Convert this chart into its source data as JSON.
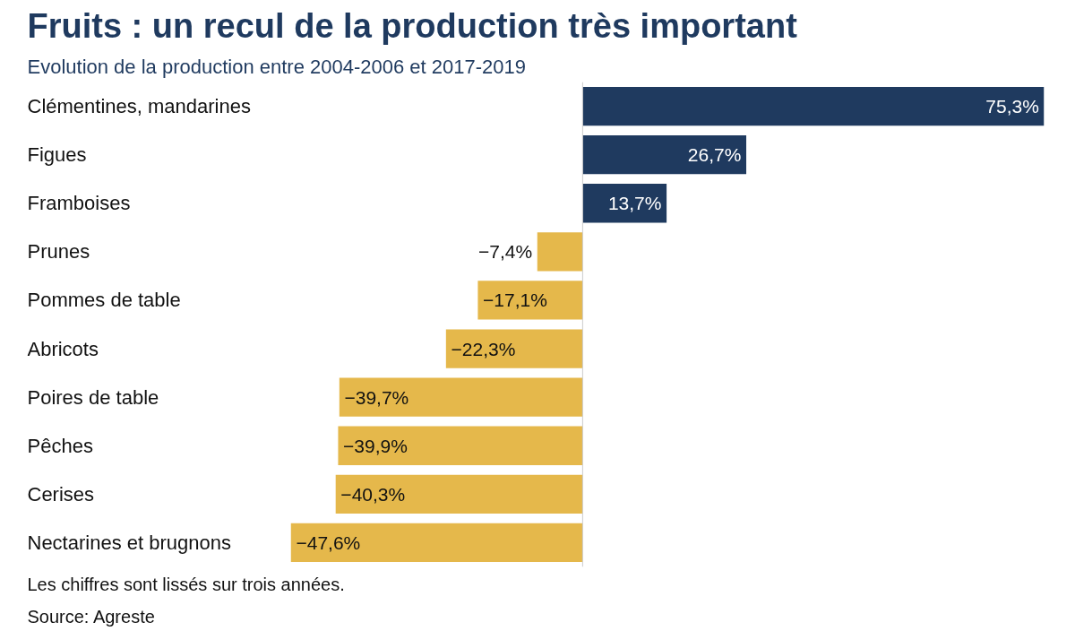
{
  "chart_data": {
    "type": "bar",
    "orientation": "horizontal",
    "title": "Fruits : un recul de la production très important",
    "subtitle": "Evolution de la production entre 2004-2006 et 2017-2019",
    "categories": [
      "Clémentines, mandarines",
      "Figues",
      "Framboises",
      "Prunes",
      "Pommes de table",
      "Abricots",
      "Poires de table",
      "Pêches",
      "Cerises",
      "Nectarines et brugnons"
    ],
    "values": [
      75.3,
      26.7,
      13.7,
      -7.4,
      -17.1,
      -22.3,
      -39.7,
      -39.9,
      -40.3,
      -47.6
    ],
    "value_labels": [
      "75,3%",
      "26,7%",
      "13,7%",
      "−7,4%",
      "−17,1%",
      "−22,3%",
      "−39,7%",
      "−39,9%",
      "−40,3%",
      "−47,6%"
    ],
    "colors": [
      "#1f3a5f",
      "#1f3a5f",
      "#1f3a5f",
      "#e5b84b",
      "#e5b84b",
      "#e5b84b",
      "#e5b84b",
      "#e5b84b",
      "#e5b84b",
      "#e5b84b"
    ],
    "grid": false,
    "annotations": [
      "Les chiffres sont lissés sur trois années.",
      "Source: Agreste"
    ]
  }
}
